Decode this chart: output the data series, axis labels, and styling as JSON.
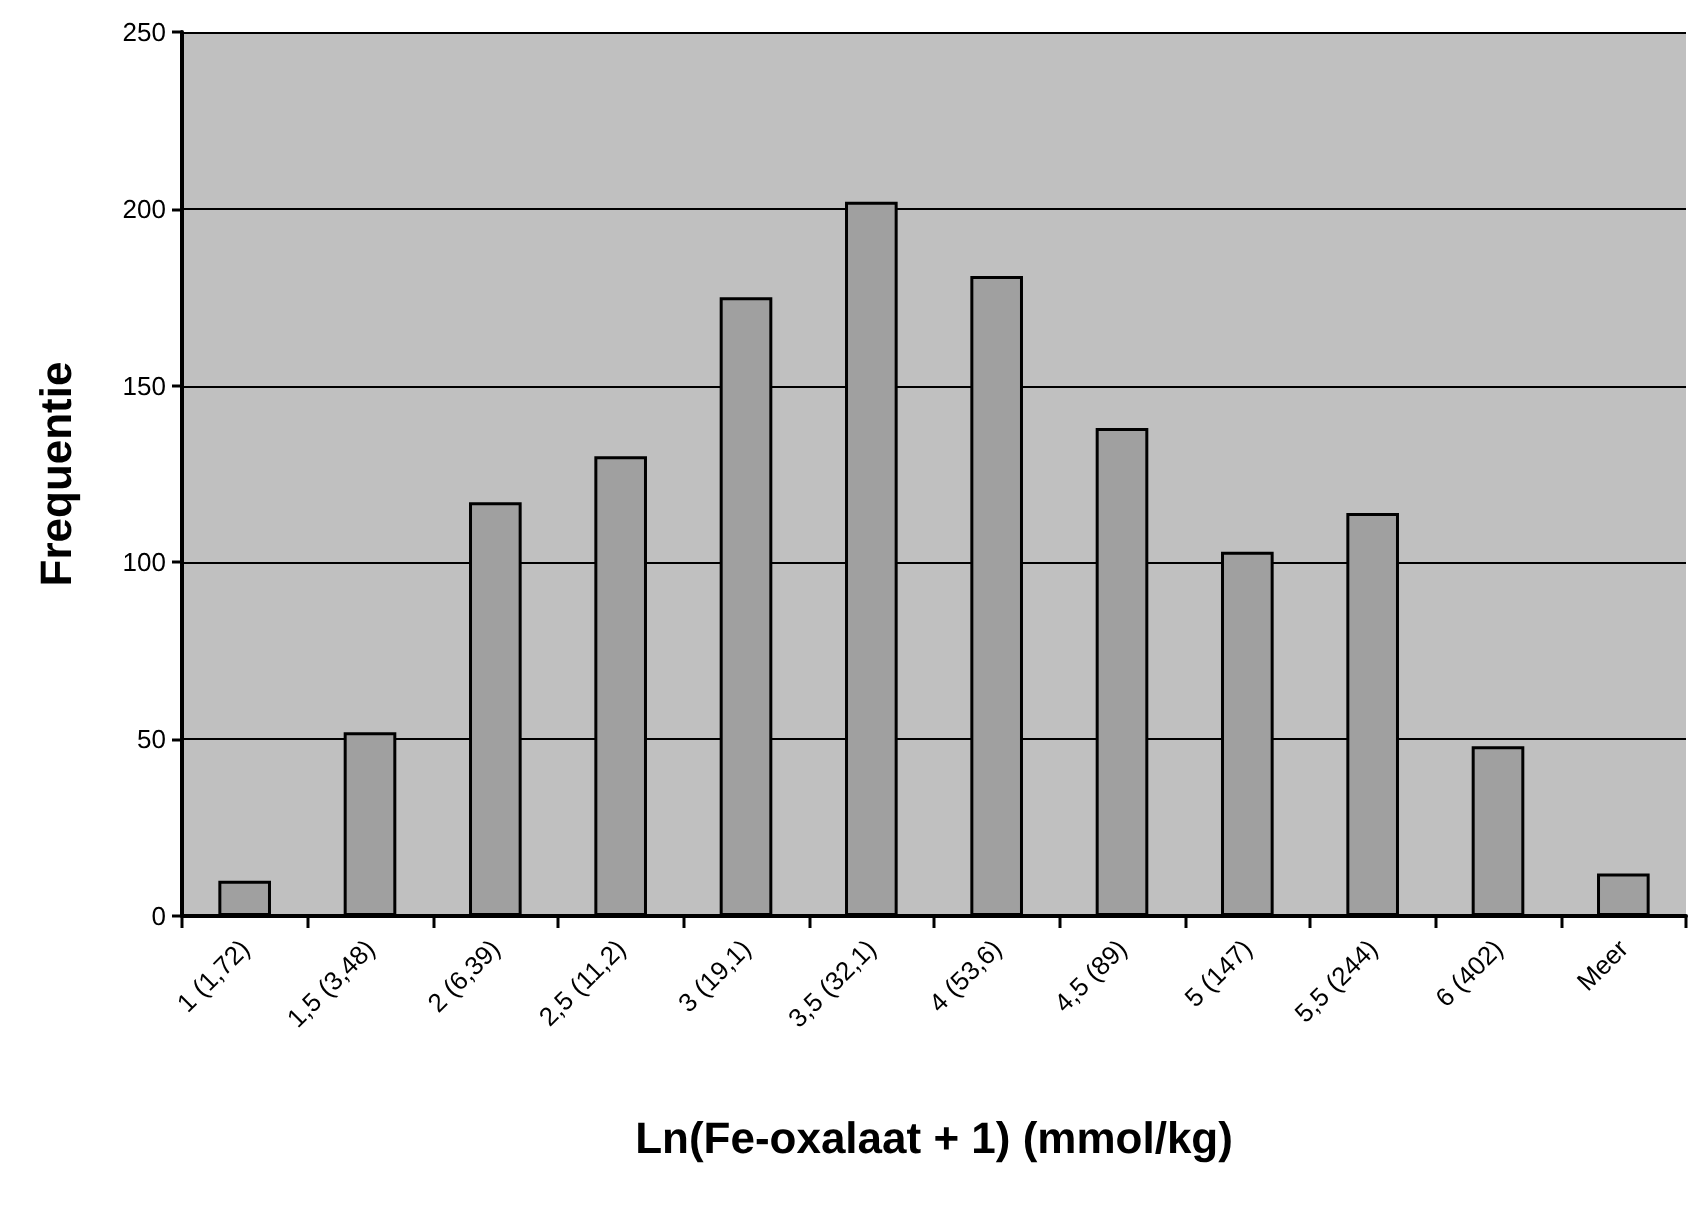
{
  "chart_data": {
    "type": "bar",
    "xlabel": "Ln(Fe-oxalaat + 1) (mmol/kg)",
    "ylabel": "Frequentie",
    "categories": [
      "1 (1,72)",
      "1,5 (3,48)",
      "2 (6,39)",
      "2,5 (11,2)",
      "3 (19,1)",
      "3,5 (32,1)",
      "4 (53,6)",
      "4,5 (89)",
      "5 (147)",
      "5,5 (244)",
      "6 (402)",
      "Meer"
    ],
    "values": [
      10,
      52,
      117,
      130,
      175,
      202,
      181,
      138,
      103,
      114,
      48,
      12
    ],
    "color": "#a0a0a0",
    "ylim": [
      0,
      250
    ],
    "yticks": [
      0,
      50,
      100,
      150,
      200,
      250
    ],
    "grid": "y"
  }
}
